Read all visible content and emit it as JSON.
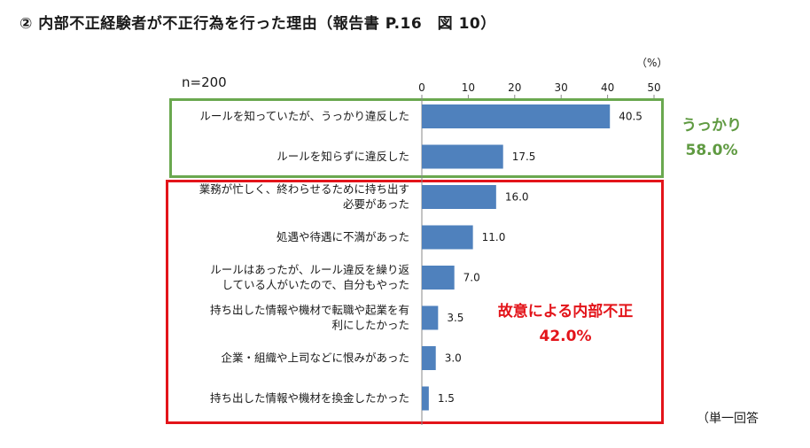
{
  "title": "② 内部不正経験者が不正行為を行った理由（報告書 P.16　図 10）",
  "sample_label": "n=200",
  "unit_label": "（%）",
  "footnote": "（単一回答",
  "groups": {
    "green": {
      "name": "うっかり",
      "value": "58.0%"
    },
    "red": {
      "name": "故意による内部不正",
      "value": "42.0%"
    }
  },
  "colors": {
    "bar": "#4f81bd",
    "green_box": "#6aa84f",
    "red_box": "#e3141a"
  },
  "chart_data": {
    "type": "bar",
    "orientation": "horizontal",
    "categories": [
      [
        "ルールを知っていたが、うっかり違反した"
      ],
      [
        "ルールを知らずに違反した"
      ],
      [
        "業務が忙しく、終わらせるために持ち出す",
        "必要があった"
      ],
      [
        "処遇や待遇に不満があった"
      ],
      [
        "ルールはあったが、ルール違反を繰り返",
        "している人がいたので、自分もやった"
      ],
      [
        "持ち出した情報や機材で転職や起業を有",
        "利にしたかった"
      ],
      [
        "企業・組織や上司などに恨みがあった"
      ],
      [
        "持ち出した情報や機材を換金したかった"
      ]
    ],
    "values": [
      40.5,
      17.5,
      16.0,
      11.0,
      7.0,
      3.5,
      3.0,
      1.5
    ],
    "value_labels": [
      "40.5",
      "17.5",
      "16.0",
      "11.0",
      "7.0",
      "3.5",
      "3.0",
      "1.5"
    ],
    "xlim": [
      0,
      50
    ],
    "ticks": [
      0,
      10,
      20,
      30,
      40,
      50
    ],
    "tick_labels": [
      "0",
      "10",
      "20",
      "30",
      "40",
      "50"
    ],
    "axis_position": "top",
    "grid": false
  }
}
